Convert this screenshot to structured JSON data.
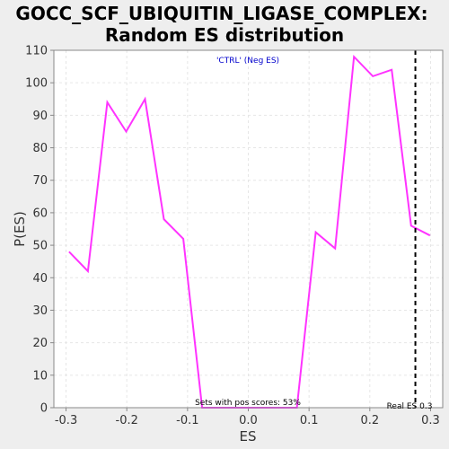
{
  "chart_data": {
    "type": "line",
    "title_line1": "GOCC_SCF_UBIQUITIN_LIGASE_COMPLEX:",
    "title_line2": "Random ES distribution",
    "xlabel": "ES",
    "ylabel": "P(ES)",
    "xlim": [
      -0.32,
      0.32
    ],
    "ylim": [
      0,
      110
    ],
    "xticks": [
      -0.3,
      -0.2,
      -0.1,
      0.0,
      0.1,
      0.2,
      0.3
    ],
    "xtick_labels": [
      "-0.3",
      "-0.2",
      "-0.1",
      "0.0",
      "0.1",
      "0.2",
      "0.3"
    ],
    "yticks": [
      0,
      10,
      20,
      30,
      40,
      50,
      60,
      70,
      80,
      90,
      100,
      110
    ],
    "ytick_labels": [
      "0",
      "10",
      "20",
      "30",
      "40",
      "50",
      "60",
      "70",
      "80",
      "90",
      "100",
      "110"
    ],
    "grid": true,
    "series": [
      {
        "name": "'CTRL' (Neg ES)",
        "color": "#ff33ff",
        "x": [
          -0.295,
          -0.264,
          -0.232,
          -0.201,
          -0.17,
          -0.139,
          -0.107,
          -0.076,
          -0.045,
          -0.014,
          0.018,
          0.049,
          0.08,
          0.111,
          0.143,
          0.174,
          0.205,
          0.236,
          0.268,
          0.299
        ],
        "y": [
          48,
          42,
          94,
          85,
          95,
          58,
          52,
          0,
          0,
          0,
          0,
          0,
          0,
          54,
          49,
          108,
          102,
          104,
          56,
          53
        ]
      }
    ],
    "real_es": 0.275,
    "annotations": {
      "legend": "'CTRL' (Neg ES)",
      "pos_scores": "Sets with pos scores: 53%",
      "real_es": "Real ES 0.3"
    },
    "colors": {
      "line": "#ff33ff",
      "legend_text": "#0000cc",
      "background": "#eeeeee",
      "plot_area": "#ffffff",
      "grid": "#e6e6e6"
    }
  }
}
